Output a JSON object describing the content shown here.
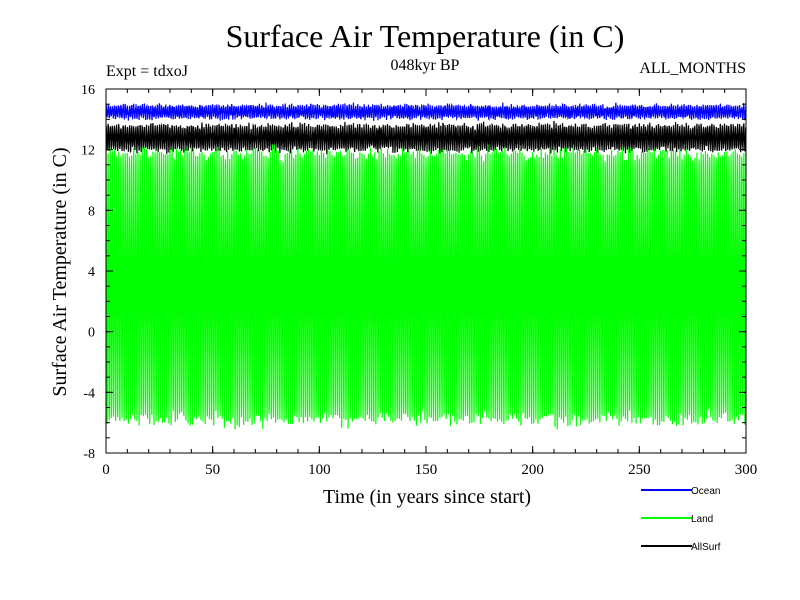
{
  "chart_data": {
    "type": "line",
    "title": "Surface Air Temperature (in C)",
    "subtitle_left": "Expt = tdxoJ",
    "subtitle_center": "048kyr BP",
    "subtitle_right": "ALL_MONTHS",
    "xlabel": "Time (in years since start)",
    "ylabel": "Surface Air Temperature (in C)",
    "xlim": [
      0,
      300
    ],
    "ylim": [
      -8,
      16
    ],
    "x_ticks": [
      0,
      50,
      100,
      150,
      200,
      250,
      300
    ],
    "y_ticks": [
      -8,
      -4,
      0,
      4,
      8,
      12,
      16
    ],
    "x_minor_step": 10,
    "y_minor_step": 1,
    "grid": false,
    "legend_position": "bottom-right, below plot",
    "series": [
      {
        "name": "Ocean",
        "color": "#0000ff",
        "mean": 14.5,
        "seasonal_amplitude": 0.35,
        "noise": 0.25
      },
      {
        "name": "Land",
        "color": "#00ff00",
        "mean": 3.0,
        "seasonal_amplitude": 8.8,
        "noise": 0.6
      },
      {
        "name": "AllSurf",
        "color": "#000000",
        "mean": 12.8,
        "seasonal_amplitude": 0.75,
        "noise": 0.35
      }
    ],
    "draw_order": [
      "Ocean",
      "AllSurf",
      "Land"
    ]
  }
}
